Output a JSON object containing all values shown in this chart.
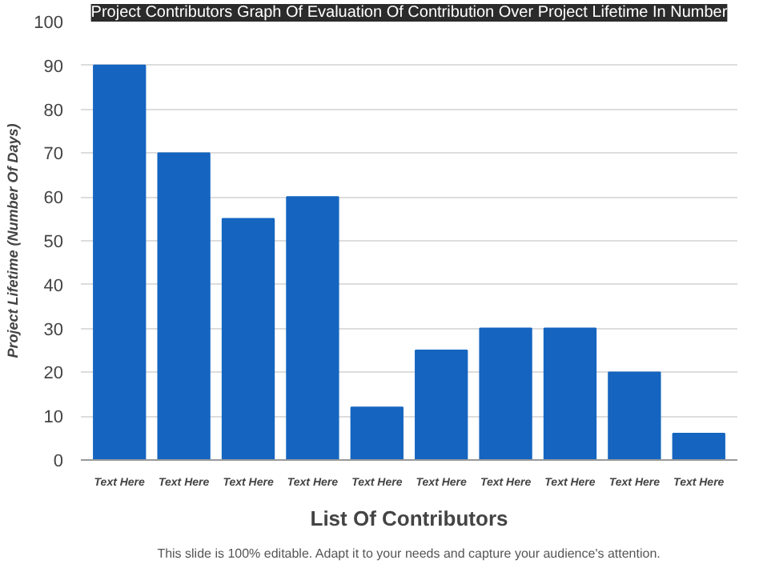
{
  "chart_data": {
    "type": "bar",
    "title": "Project Contributors Graph Of Evaluation Of Contribution Over Project Lifetime In Number",
    "xlabel": "List Of Contributors",
    "ylabel": "Project Lifetime (Number Of Days)",
    "categories": [
      "Text Here",
      "Text Here",
      "Text Here",
      "Text Here",
      "Text Here",
      "Text Here",
      "Text Here",
      "Text Here",
      "Text Here",
      "Text Here"
    ],
    "values": [
      90,
      70,
      55,
      60,
      12,
      25,
      30,
      30,
      20,
      6
    ],
    "color": "#1565c0",
    "ylim": [
      0,
      100
    ],
    "yticks": [
      0,
      10,
      20,
      30,
      40,
      50,
      60,
      70,
      80,
      90,
      100
    ],
    "grid": "y",
    "annotations": [
      "This slide is 100% editable. Adapt it to your needs and capture your audience's attention."
    ]
  }
}
